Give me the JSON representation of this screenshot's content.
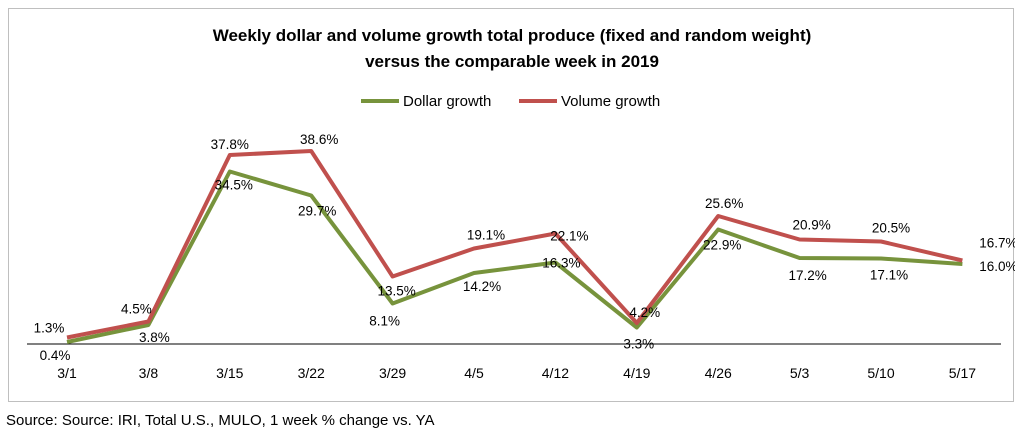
{
  "chart_data": {
    "type": "line",
    "title": [
      "Weekly dollar and volume growth  total produce (fixed and random weight)",
      "versus the comparable week in 2019"
    ],
    "categories": [
      "3/1",
      "3/8",
      "3/15",
      "3/22",
      "3/29",
      "4/5",
      "4/12",
      "4/19",
      "4/26",
      "5/3",
      "5/10",
      "5/17"
    ],
    "series": [
      {
        "name": "Dollar growth",
        "color": "#77933c",
        "values": [
          0.4,
          3.8,
          34.5,
          29.7,
          8.1,
          14.2,
          16.3,
          3.3,
          22.9,
          17.2,
          17.1,
          16.0
        ],
        "labels": [
          "0.4%",
          "3.8%",
          "34.5%",
          "29.7%",
          "8.1%",
          "14.2%",
          "16.3%",
          "3.3%",
          "22.9%",
          "17.2%",
          "17.1%",
          "16.0%"
        ]
      },
      {
        "name": "Volume growth",
        "color": "#c0504d",
        "values": [
          1.3,
          4.5,
          37.8,
          38.6,
          13.5,
          19.1,
          22.1,
          4.2,
          25.6,
          20.9,
          20.5,
          16.7
        ],
        "labels": [
          "1.3%",
          "4.5%",
          "37.8%",
          "38.6%",
          "13.5%",
          "19.1%",
          "22.1%",
          "4.2%",
          "25.6%",
          "20.9%",
          "20.5%",
          "16.7%"
        ]
      }
    ],
    "ylim": [
      0,
      40
    ],
    "legend": "top-center",
    "grid": false
  },
  "source": "Source: Source: IRI, Total U.S., MULO, 1 week % change vs. YA"
}
